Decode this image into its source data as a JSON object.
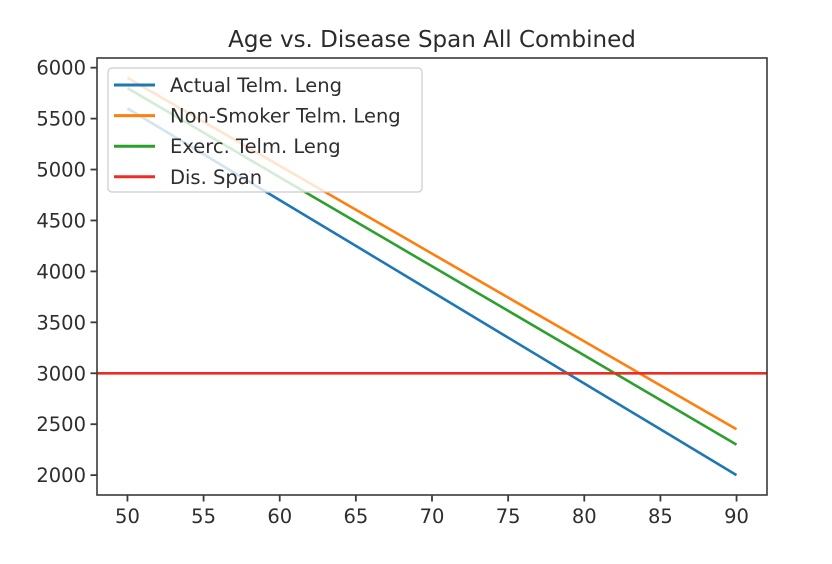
{
  "chart_data": {
    "type": "line",
    "title": "Age vs. Disease Span All Combined",
    "xlabel": "",
    "ylabel": "",
    "xlim": [
      48,
      92
    ],
    "ylim": [
      1805,
      6095
    ],
    "xticks": [
      50,
      55,
      60,
      65,
      70,
      75,
      80,
      85,
      90
    ],
    "yticks": [
      2000,
      2500,
      3000,
      3500,
      4000,
      4500,
      5000,
      5500,
      6000
    ],
    "grid": false,
    "legend_position": "upper-left",
    "legend_entries": [
      "Actual Telm. Leng",
      "Non-Smoker Telm. Leng",
      "Exerc. Telm. Leng",
      "Dis. Span"
    ],
    "series": [
      {
        "name": "Actual Telm. Leng",
        "color": "#1f77b4",
        "x": [
          50,
          55,
          60,
          65,
          70,
          75,
          80,
          85,
          90
        ],
        "y": [
          5600,
          5150,
          4700,
          4250,
          3800,
          3350,
          2900,
          2450,
          2000
        ]
      },
      {
        "name": "Non-Smoker Telm. Leng",
        "color": "#ff7f0e",
        "x": [
          50,
          55,
          60,
          65,
          70,
          75,
          80,
          85,
          90
        ],
        "y": [
          5900,
          5469,
          5038,
          4606,
          4175,
          3744,
          3313,
          2881,
          2450
        ]
      },
      {
        "name": "Exerc. Telm. Leng",
        "color": "#2ca02c",
        "x": [
          50,
          55,
          60,
          65,
          70,
          75,
          80,
          85,
          90
        ],
        "y": [
          5800,
          5363,
          4925,
          4488,
          4050,
          3613,
          3175,
          2738,
          2300
        ]
      },
      {
        "name": "Dis. Span",
        "color": "#ed2d24",
        "x": [
          48,
          92
        ],
        "y": [
          3000,
          3000
        ]
      }
    ]
  },
  "colors": {
    "spine": "#3a3a3a",
    "text": "#2e2e2e",
    "legend_border": "#cccccc",
    "background": "#ffffff"
  }
}
